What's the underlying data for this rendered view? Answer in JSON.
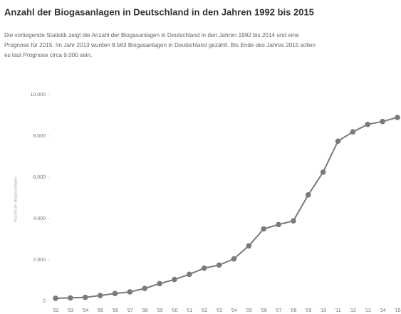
{
  "chart_data": {
    "type": "line",
    "title": "Anzahl der Biogasanlagen in Deutschland in den Jahren 1992 bis 2015",
    "description": [
      "Die vorliegende Statistik zeigt die Anzahl der Biogasanlagen in Deutschland in den Jahren 1992 bis 2014 und eine",
      "Prognose für 2015. Im Jahr 2013 wurden 8.563 Biogasanlagen in Deutschland gezählt. Bis Ende des Jahres 2015 sollen",
      "es laut Prognose circa 9.000 sein."
    ],
    "y_label": "Anzahl der Biogasanlagen",
    "categories": [
      "'92",
      "'93",
      "'94",
      "'95",
      "'96",
      "'97",
      "'98",
      "'99",
      "'00",
      "'01",
      "'02",
      "'03",
      "'04",
      "'05",
      "'06",
      "'07",
      "'08",
      "'09",
      "'10",
      "'11",
      "'12",
      "'13",
      "'14",
      "'15"
    ],
    "values": [
      139,
      159,
      186,
      274,
      370,
      450,
      617,
      850,
      1050,
      1300,
      1600,
      1750,
      2050,
      2680,
      3500,
      3711,
      3891,
      5150,
      6250,
      7750,
      8200,
      8563,
      8700,
      8900
    ],
    "color": "#7a7a7a",
    "ylim": [
      0,
      10000
    ],
    "yticks": [
      0,
      {
        "value": 2000,
        "label": "2.000"
      },
      {
        "value": 4000,
        "label": "4.000"
      },
      {
        "value": 6000,
        "label": "6.000"
      },
      {
        "value": 8000,
        "label": "8.000"
      },
      {
        "value": 10000,
        "label": "10.000"
      }
    ],
    "grid": false
  }
}
